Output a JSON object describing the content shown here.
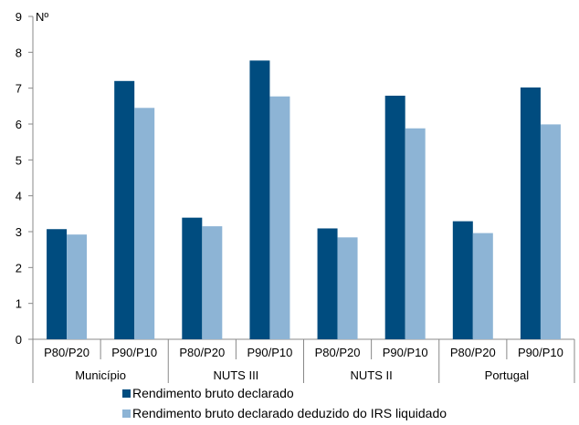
{
  "chart_data": {
    "type": "bar",
    "ylabel": "Nº",
    "ylim": [
      0,
      9
    ],
    "yticks": [
      0,
      1,
      2,
      3,
      4,
      5,
      6,
      7,
      8,
      9
    ],
    "grid": false,
    "legend_position": "bottom",
    "groups": [
      {
        "label": "Município",
        "categories": [
          "P80/P20",
          "P90/P10"
        ]
      },
      {
        "label": "NUTS III",
        "categories": [
          "P80/P20",
          "P90/P10"
        ]
      },
      {
        "label": "NUTS II",
        "categories": [
          "P80/P20",
          "P90/P10"
        ]
      },
      {
        "label": "Portugal",
        "categories": [
          "P80/P20",
          "P90/P10"
        ]
      }
    ],
    "categories": [
      "P80/P20",
      "P90/P10",
      "P80/P20",
      "P90/P10",
      "P80/P20",
      "P90/P10",
      "P80/P20",
      "P90/P10"
    ],
    "series": [
      {
        "name": "Rendimento bruto declarado",
        "color": "#004C7F",
        "values": [
          3.07,
          7.2,
          3.39,
          7.77,
          3.09,
          6.79,
          3.29,
          7.02
        ]
      },
      {
        "name": "Rendimento bruto declarado deduzido do IRS liquidado",
        "color": "#8DB4D5",
        "values": [
          2.92,
          6.45,
          3.15,
          6.77,
          2.84,
          5.88,
          2.96,
          5.99
        ]
      }
    ]
  }
}
